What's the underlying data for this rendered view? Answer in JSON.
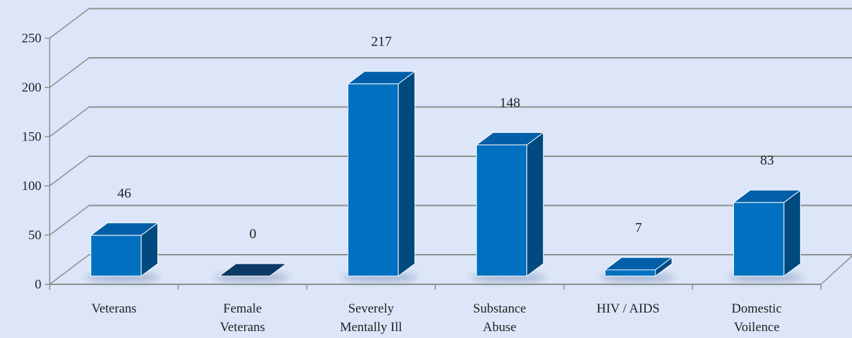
{
  "chart_data": {
    "type": "bar",
    "title": "",
    "xlabel": "",
    "ylabel": "",
    "categories": [
      [
        "Veterans"
      ],
      [
        "Female",
        "Veterans"
      ],
      [
        "Severely",
        "Mentally Ill"
      ],
      [
        "Substance",
        "Abuse"
      ],
      [
        "HIV / AIDS"
      ],
      [
        "Domestic",
        "Voilence"
      ]
    ],
    "values": [
      46,
      0,
      217,
      148,
      7,
      83
    ],
    "data_labels": [
      "46",
      "0",
      "217",
      "148",
      "7",
      "83"
    ],
    "ylim": [
      0,
      250
    ],
    "yticks": [
      "0",
      "50",
      "100",
      "150",
      "200",
      "250"
    ],
    "grid": true,
    "legend": "none",
    "style": "3d-column"
  },
  "colors": {
    "background": "#dce6f8",
    "bar_front": "#0070c0",
    "bar_side": "#004a80",
    "bar_top": "#005fa8",
    "zero_bar": "#0d3a66",
    "gridline": "#8c8c8c"
  }
}
